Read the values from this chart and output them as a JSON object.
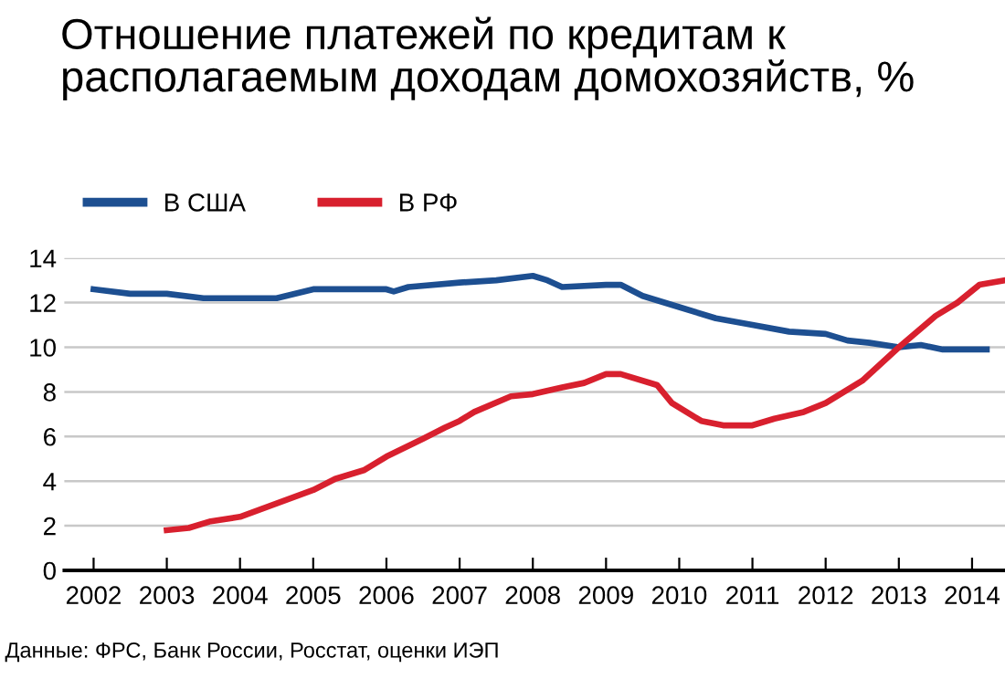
{
  "chart_data": {
    "type": "line",
    "title": "Отношение платежей по кредитам к располагаемым доходам домохозяйств, %",
    "series": [
      {
        "name": "В США",
        "color": "#1d4f91",
        "x": [
          2002,
          2002.5,
          2003,
          2003.5,
          2004,
          2004.5,
          2005,
          2005.5,
          2006,
          2006.1,
          2006.3,
          2007,
          2007.5,
          2008,
          2008.2,
          2008.4,
          2009,
          2009.2,
          2009.5,
          2010,
          2010.5,
          2011,
          2011.5,
          2012,
          2012.3,
          2012.6,
          2013,
          2013.3,
          2013.6,
          2014.2
        ],
        "values": [
          12.6,
          12.4,
          12.4,
          12.2,
          12.2,
          12.2,
          12.6,
          12.6,
          12.6,
          12.5,
          12.7,
          12.9,
          13.0,
          13.2,
          13.0,
          12.7,
          12.8,
          12.8,
          12.3,
          11.8,
          11.3,
          11.0,
          10.7,
          10.6,
          10.3,
          10.2,
          10.0,
          10.1,
          9.9,
          9.9
        ]
      },
      {
        "name": "В РФ",
        "color": "#d8202e",
        "x": [
          2003,
          2003.3,
          2003.6,
          2004,
          2004.5,
          2005,
          2005.3,
          2005.7,
          2006,
          2006.5,
          2006.8,
          2007,
          2007.2,
          2007.7,
          2008,
          2008.4,
          2008.7,
          2009,
          2009.2,
          2009.7,
          2009.9,
          2010.3,
          2010.6,
          2011,
          2011.3,
          2011.7,
          2012,
          2012.5,
          2013,
          2013.5,
          2013.8,
          2014.1,
          2014.45
        ],
        "values": [
          1.8,
          1.9,
          2.2,
          2.4,
          3.0,
          3.6,
          4.1,
          4.5,
          5.1,
          5.9,
          6.4,
          6.7,
          7.1,
          7.8,
          7.9,
          8.2,
          8.4,
          8.8,
          8.8,
          8.3,
          7.5,
          6.7,
          6.5,
          6.5,
          6.8,
          7.1,
          7.5,
          8.5,
          10.0,
          11.4,
          12.0,
          12.8,
          13.0
        ]
      }
    ],
    "xlim": [
      2001.6,
      2014.45
    ],
    "xticks": [
      2002,
      2003,
      2004,
      2005,
      2006,
      2007,
      2008,
      2009,
      2010,
      2011,
      2012,
      2013,
      2014
    ],
    "ylim": [
      0,
      14
    ],
    "yticks": [
      0,
      2,
      4,
      6,
      8,
      10,
      12,
      14
    ],
    "grid": "y",
    "legend": "top left",
    "line_style": "solid",
    "marker": "none",
    "annotations": [
      "Данные: ФРС, Банк России, Росстат, оценки ИЭП"
    ]
  }
}
